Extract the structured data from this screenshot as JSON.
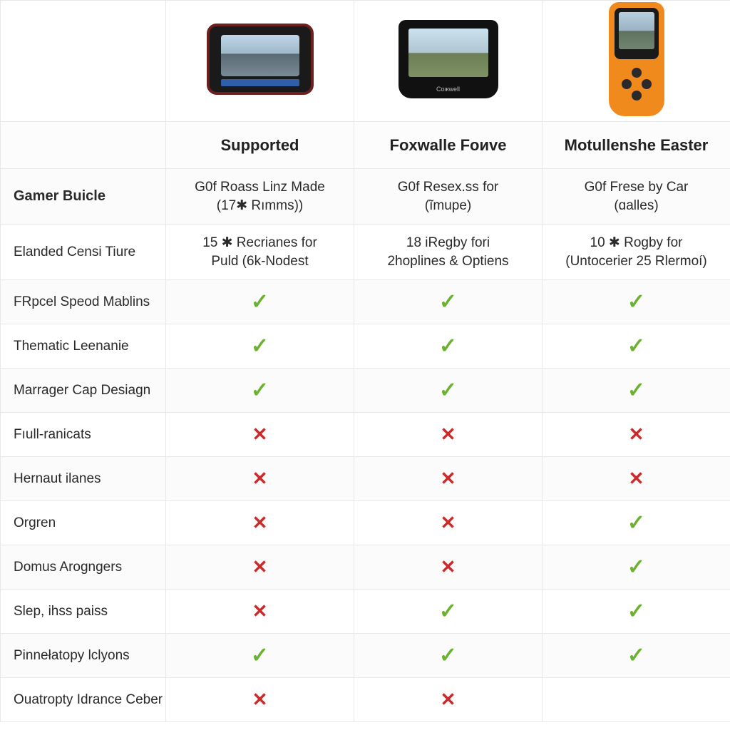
{
  "colors": {
    "border": "#e8e8e8",
    "check": "#6bb22d",
    "cross": "#c92b2b",
    "row_alt": "#fbfbfb",
    "text": "#2a2a2a"
  },
  "icons": {
    "check": "✓",
    "cross": "✕"
  },
  "products": [
    {
      "name": "Supported"
    },
    {
      "name": "Foxwalle Foиve"
    },
    {
      "name": "Motullenshe Easter"
    }
  ],
  "rows": [
    {
      "label": "Gamer Buicle",
      "label_bold": true,
      "type": "text",
      "cells": [
        {
          "line1": "G0f Roass Linz Made",
          "line2": "(17✱ Rımms))"
        },
        {
          "line1": "G0f Reseх.ss for",
          "line2": "(ĩmupe)"
        },
        {
          "line1": "G0f Frese by Car",
          "line2": "(ɑalles)"
        }
      ]
    },
    {
      "label": "Elanded Censi Tiure",
      "type": "text",
      "cells": [
        {
          "line1": "15 ✱ Recrianes for",
          "line2": "Puld (6k-Nodest"
        },
        {
          "line1": "18 iRegby fori",
          "line2": "2hoplines & Optiens"
        },
        {
          "line1": "10 ✱ Rogby for",
          "line2": "(Untocerier 25 Rlermoí)"
        }
      ]
    },
    {
      "label": "FRpcel Speod Mablins",
      "type": "mark",
      "cells": [
        "check",
        "check",
        "check"
      ]
    },
    {
      "label": "Thematic Leenanie",
      "type": "mark",
      "cells": [
        "check",
        "check",
        "check"
      ]
    },
    {
      "label": "Marrager Cap Desiagn",
      "type": "mark",
      "cells": [
        "check",
        "check",
        "check"
      ]
    },
    {
      "label": "Fıull-ranicats",
      "type": "mark",
      "cells": [
        "cross",
        "cross",
        "cross"
      ]
    },
    {
      "label": "Hernaut ilanes",
      "type": "mark",
      "cells": [
        "cross",
        "cross",
        "cross"
      ]
    },
    {
      "label": "Orgren",
      "type": "mark",
      "cells": [
        "cross",
        "cross",
        "check"
      ]
    },
    {
      "label": "Domus Arogngers",
      "type": "mark",
      "cells": [
        "cross",
        "cross",
        "check"
      ]
    },
    {
      "label": "Slep, ihss paiss",
      "type": "mark",
      "cells": [
        "cross",
        "check",
        "check"
      ]
    },
    {
      "label": "Pinnełatopy lclyons",
      "type": "mark",
      "cells": [
        "check",
        "check",
        "check"
      ]
    },
    {
      "label": "Ouatropty Idrance Ceber",
      "type": "mark",
      "cells": [
        "cross",
        "cross",
        "empty"
      ]
    }
  ]
}
